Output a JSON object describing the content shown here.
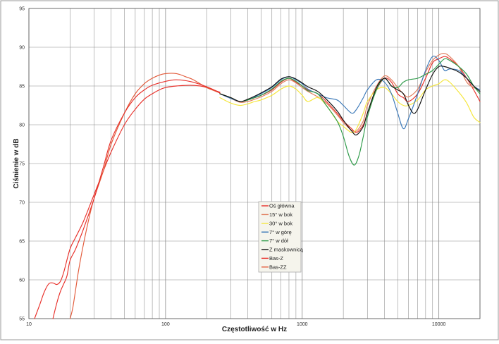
{
  "chart_data": {
    "type": "line",
    "xlabel": "Częstotliwość w Hz",
    "ylabel": "Ciśnienie w dB",
    "x_scale": "log",
    "xlim": [
      10,
      20000
    ],
    "ylim": [
      55,
      95
    ],
    "x_ticks": [
      10,
      100,
      1000,
      10000
    ],
    "x_tick_labels": [
      "10",
      "100",
      "1000",
      "10000"
    ],
    "y_ticks": [
      55,
      60,
      65,
      70,
      75,
      80,
      85,
      90,
      95
    ],
    "y_tick_labels": [
      "55",
      "60",
      "65",
      "70",
      "75",
      "80",
      "85",
      "90",
      "95"
    ],
    "grid": true,
    "legend_position": "center-bottom",
    "series": [
      {
        "name": "Oś główna",
        "color": "#e8302a",
        "points": [
          [
            250,
            84.0
          ],
          [
            300,
            83.5
          ],
          [
            350,
            83.0
          ],
          [
            400,
            83.2
          ],
          [
            450,
            83.5
          ],
          [
            500,
            83.8
          ],
          [
            600,
            84.5
          ],
          [
            700,
            85.5
          ],
          [
            800,
            86.0
          ],
          [
            900,
            85.5
          ],
          [
            1000,
            85.0
          ],
          [
            1100,
            84.5
          ],
          [
            1300,
            84.0
          ],
          [
            1500,
            83.0
          ],
          [
            1800,
            81.5
          ],
          [
            2000,
            80.5
          ],
          [
            2300,
            79.5
          ],
          [
            2500,
            79.0
          ],
          [
            2800,
            80.0
          ],
          [
            3000,
            81.5
          ],
          [
            3500,
            84.5
          ],
          [
            4000,
            86.0
          ],
          [
            4500,
            85.5
          ],
          [
            5000,
            84.0
          ],
          [
            5500,
            83.5
          ],
          [
            6000,
            83.0
          ],
          [
            7000,
            84.0
          ],
          [
            8000,
            86.0
          ],
          [
            9000,
            88.0
          ],
          [
            10000,
            88.5
          ],
          [
            11000,
            88.8
          ],
          [
            12000,
            88.5
          ],
          [
            14000,
            87.5
          ],
          [
            16000,
            86.0
          ],
          [
            18000,
            84.5
          ],
          [
            20000,
            83.0
          ]
        ]
      },
      {
        "name": "15° w bok",
        "color": "#e07a5a",
        "points": [
          [
            250,
            84.0
          ],
          [
            300,
            83.4
          ],
          [
            350,
            82.9
          ],
          [
            400,
            83.0
          ],
          [
            450,
            83.3
          ],
          [
            500,
            83.6
          ],
          [
            600,
            84.3
          ],
          [
            700,
            85.3
          ],
          [
            800,
            85.8
          ],
          [
            900,
            85.4
          ],
          [
            1000,
            84.8
          ],
          [
            1100,
            84.3
          ],
          [
            1300,
            83.6
          ],
          [
            1500,
            82.8
          ],
          [
            1800,
            81.3
          ],
          [
            2000,
            80.3
          ],
          [
            2300,
            79.3
          ],
          [
            2500,
            79.2
          ],
          [
            2800,
            80.5
          ],
          [
            3000,
            82.5
          ],
          [
            3500,
            85.0
          ],
          [
            4000,
            86.3
          ],
          [
            4500,
            85.8
          ],
          [
            5000,
            84.8
          ],
          [
            5500,
            84.0
          ],
          [
            6000,
            83.6
          ],
          [
            7000,
            84.6
          ],
          [
            8000,
            86.8
          ],
          [
            9000,
            88.3
          ],
          [
            10000,
            89.0
          ],
          [
            11000,
            89.2
          ],
          [
            12000,
            88.8
          ],
          [
            14000,
            87.5
          ],
          [
            16000,
            85.5
          ],
          [
            18000,
            84.8
          ],
          [
            20000,
            84.5
          ]
        ]
      },
      {
        "name": "30° w bok",
        "color": "#f5e63a",
        "points": [
          [
            250,
            83.5
          ],
          [
            300,
            82.8
          ],
          [
            350,
            82.5
          ],
          [
            400,
            82.7
          ],
          [
            450,
            83.0
          ],
          [
            500,
            83.2
          ],
          [
            600,
            83.8
          ],
          [
            700,
            84.6
          ],
          [
            800,
            85.0
          ],
          [
            900,
            84.6
          ],
          [
            1000,
            83.8
          ],
          [
            1100,
            83.0
          ],
          [
            1300,
            83.5
          ],
          [
            1500,
            82.5
          ],
          [
            1800,
            80.5
          ],
          [
            2000,
            79.8
          ],
          [
            2300,
            79.0
          ],
          [
            2500,
            79.5
          ],
          [
            2800,
            81.5
          ],
          [
            3000,
            83.0
          ],
          [
            3500,
            84.5
          ],
          [
            4000,
            84.8
          ],
          [
            4500,
            84.0
          ],
          [
            5000,
            83.0
          ],
          [
            5500,
            82.5
          ],
          [
            6000,
            82.5
          ],
          [
            7000,
            83.2
          ],
          [
            8000,
            84.5
          ],
          [
            9000,
            85.0
          ],
          [
            10000,
            85.3
          ],
          [
            11000,
            85.8
          ],
          [
            12000,
            85.5
          ],
          [
            14000,
            84.2
          ],
          [
            16000,
            82.8
          ],
          [
            18000,
            81.0
          ],
          [
            20000,
            80.3
          ]
        ]
      },
      {
        "name": "7° w górę",
        "color": "#3a78b8",
        "points": [
          [
            250,
            84.0
          ],
          [
            300,
            83.4
          ],
          [
            350,
            83.0
          ],
          [
            400,
            83.2
          ],
          [
            450,
            83.6
          ],
          [
            500,
            84.0
          ],
          [
            600,
            84.8
          ],
          [
            700,
            85.8
          ],
          [
            800,
            86.2
          ],
          [
            900,
            85.8
          ],
          [
            1000,
            85.3
          ],
          [
            1100,
            84.6
          ],
          [
            1300,
            84.0
          ],
          [
            1500,
            83.5
          ],
          [
            1800,
            83.2
          ],
          [
            2000,
            82.5
          ],
          [
            2300,
            81.5
          ],
          [
            2500,
            82.0
          ],
          [
            2800,
            83.5
          ],
          [
            3000,
            84.5
          ],
          [
            3500,
            85.8
          ],
          [
            4000,
            85.5
          ],
          [
            4500,
            84.0
          ],
          [
            5000,
            81.5
          ],
          [
            5500,
            79.5
          ],
          [
            6000,
            80.8
          ],
          [
            7000,
            84.0
          ],
          [
            8000,
            87.0
          ],
          [
            9000,
            88.8
          ],
          [
            10000,
            88.3
          ],
          [
            11000,
            87.0
          ],
          [
            12000,
            87.2
          ],
          [
            14000,
            87.0
          ],
          [
            16000,
            86.0
          ],
          [
            18000,
            85.0
          ],
          [
            20000,
            84.5
          ]
        ]
      },
      {
        "name": "7° w dół",
        "color": "#2c9a48",
        "points": [
          [
            250,
            84.0
          ],
          [
            300,
            83.5
          ],
          [
            350,
            83.0
          ],
          [
            400,
            83.2
          ],
          [
            450,
            83.5
          ],
          [
            500,
            83.8
          ],
          [
            600,
            84.6
          ],
          [
            700,
            85.6
          ],
          [
            800,
            86.0
          ],
          [
            900,
            85.6
          ],
          [
            1000,
            85.0
          ],
          [
            1100,
            84.4
          ],
          [
            1300,
            84.0
          ],
          [
            1500,
            82.5
          ],
          [
            1800,
            80.5
          ],
          [
            2000,
            78.5
          ],
          [
            2200,
            76.0
          ],
          [
            2400,
            74.8
          ],
          [
            2600,
            76.0
          ],
          [
            2800,
            78.5
          ],
          [
            3000,
            81.0
          ],
          [
            3500,
            84.5
          ],
          [
            4000,
            86.0
          ],
          [
            4500,
            85.0
          ],
          [
            5000,
            84.8
          ],
          [
            5500,
            85.5
          ],
          [
            6000,
            85.8
          ],
          [
            7000,
            86.0
          ],
          [
            8000,
            86.5
          ],
          [
            9000,
            87.0
          ],
          [
            10000,
            87.8
          ],
          [
            11000,
            88.5
          ],
          [
            12000,
            88.3
          ],
          [
            14000,
            87.5
          ],
          [
            16000,
            86.5
          ],
          [
            18000,
            85.0
          ],
          [
            20000,
            84.0
          ]
        ]
      },
      {
        "name": "Z maskownicą",
        "color": "#111111",
        "points": [
          [
            250,
            84.0
          ],
          [
            300,
            83.5
          ],
          [
            350,
            83.0
          ],
          [
            400,
            83.3
          ],
          [
            450,
            83.7
          ],
          [
            500,
            84.1
          ],
          [
            600,
            84.9
          ],
          [
            700,
            85.9
          ],
          [
            800,
            86.2
          ],
          [
            900,
            85.9
          ],
          [
            1000,
            85.4
          ],
          [
            1100,
            84.9
          ],
          [
            1300,
            84.3
          ],
          [
            1500,
            83.3
          ],
          [
            1800,
            81.8
          ],
          [
            2000,
            80.6
          ],
          [
            2300,
            79.2
          ],
          [
            2500,
            78.7
          ],
          [
            2800,
            79.8
          ],
          [
            3000,
            81.5
          ],
          [
            3500,
            84.8
          ],
          [
            4000,
            86.0
          ],
          [
            4500,
            85.0
          ],
          [
            5000,
            84.5
          ],
          [
            5500,
            84.0
          ],
          [
            6000,
            82.5
          ],
          [
            6500,
            81.5
          ],
          [
            7000,
            82.0
          ],
          [
            8000,
            84.5
          ],
          [
            9000,
            86.5
          ],
          [
            10000,
            87.5
          ],
          [
            11000,
            87.5
          ],
          [
            12000,
            87.3
          ],
          [
            14000,
            86.8
          ],
          [
            16000,
            86.0
          ],
          [
            18000,
            85.0
          ],
          [
            20000,
            84.3
          ]
        ]
      },
      {
        "name": "Bas-Z",
        "color": "#e8302a",
        "points": [
          [
            11,
            55.0
          ],
          [
            12,
            56.8
          ],
          [
            13,
            58.5
          ],
          [
            14,
            59.5
          ],
          [
            15,
            59.6
          ],
          [
            16,
            59.4
          ],
          [
            17,
            59.8
          ],
          [
            18,
            61.0
          ],
          [
            20,
            64.0
          ],
          [
            22,
            65.5
          ],
          [
            25,
            67.5
          ],
          [
            30,
            71.0
          ],
          [
            35,
            74.0
          ],
          [
            40,
            76.5
          ],
          [
            50,
            80.0
          ],
          [
            60,
            82.0
          ],
          [
            70,
            83.3
          ],
          [
            80,
            84.0
          ],
          [
            90,
            84.5
          ],
          [
            100,
            84.8
          ],
          [
            120,
            85.0
          ],
          [
            150,
            85.1
          ],
          [
            180,
            85.0
          ],
          [
            200,
            84.8
          ],
          [
            250,
            84.2
          ]
        ]
      },
      {
        "name": "Bas-ZZ",
        "color": "#e25a3a",
        "points": [
          [
            20,
            55.0
          ],
          [
            21,
            56.5
          ],
          [
            23,
            61.0
          ],
          [
            25,
            64.5
          ],
          [
            28,
            68.5
          ],
          [
            30,
            70.5
          ],
          [
            35,
            74.0
          ],
          [
            40,
            77.5
          ],
          [
            50,
            81.5
          ],
          [
            60,
            84.0
          ],
          [
            70,
            85.3
          ],
          [
            80,
            86.0
          ],
          [
            90,
            86.4
          ],
          [
            100,
            86.6
          ],
          [
            120,
            86.6
          ],
          [
            140,
            86.2
          ],
          [
            160,
            85.8
          ],
          [
            200,
            84.8
          ],
          [
            250,
            84.1
          ]
        ]
      },
      {
        "name": "",
        "color": "#e8302a",
        "points": [
          [
            15,
            55.0
          ],
          [
            16,
            57.0
          ],
          [
            17,
            58.5
          ],
          [
            18,
            59.5
          ],
          [
            19,
            60.5
          ],
          [
            20,
            62.5
          ],
          [
            22,
            64.0
          ],
          [
            25,
            66.5
          ],
          [
            30,
            70.5
          ],
          [
            35,
            74.5
          ],
          [
            40,
            78.0
          ],
          [
            50,
            81.5
          ],
          [
            60,
            83.5
          ],
          [
            70,
            84.5
          ],
          [
            80,
            85.1
          ],
          [
            100,
            85.6
          ],
          [
            120,
            85.8
          ],
          [
            150,
            85.6
          ],
          [
            180,
            85.2
          ],
          [
            220,
            84.6
          ],
          [
            250,
            84.1
          ]
        ]
      }
    ]
  }
}
